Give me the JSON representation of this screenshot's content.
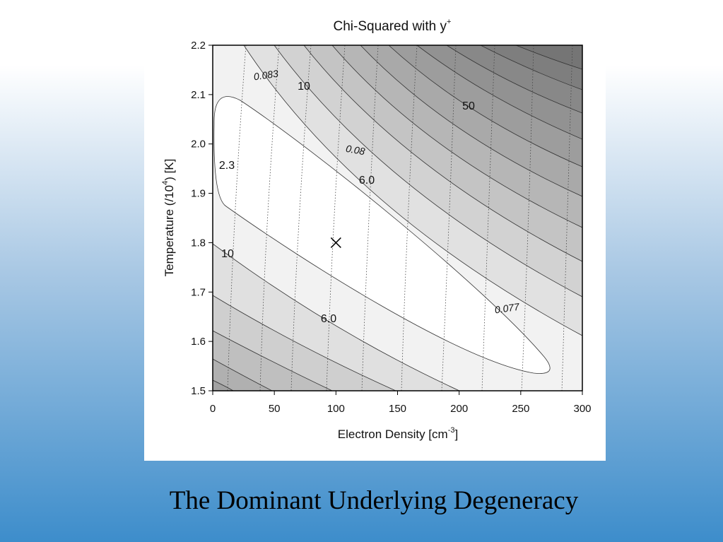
{
  "chart_data": {
    "type": "contour",
    "title": [
      "Chi-Squared with y",
      "+"
    ],
    "x_label": [
      "Electron Density [cm",
      "-3",
      "]"
    ],
    "y_label": [
      "Temperature (/10",
      "4",
      ") [K]"
    ],
    "xlim": [
      0,
      300
    ],
    "xticks": [
      0,
      50,
      100,
      150,
      200,
      250,
      300
    ],
    "ylim": [
      1.5,
      2.2
    ],
    "yticks": [
      1.5,
      1.6,
      1.7,
      1.8,
      1.9,
      {
        "value": 2,
        "label": "2.0"
      },
      2.1,
      2.2
    ],
    "chi2_labels": [
      10,
      50,
      {
        "value": 6,
        "label": "6.0"
      },
      2.3,
      10,
      {
        "value": 6,
        "label": "6.0"
      }
    ],
    "yplus_labels": [
      0.083,
      0.08,
      0.077
    ],
    "best_fit": {
      "x": 100,
      "y": 1.8
    }
  },
  "caption": "The Dominant Underlying Degeneracy"
}
